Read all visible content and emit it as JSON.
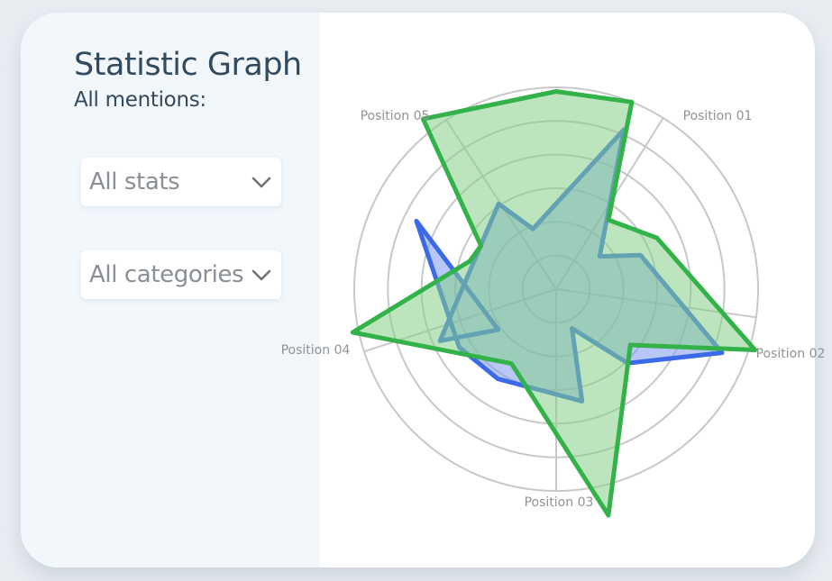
{
  "panel": {
    "title": "Statistic Graph",
    "subtitle": "All mentions:",
    "dropdowns": [
      {
        "label": "All stats",
        "icon": "chevron-down-icon"
      },
      {
        "label": "All categories",
        "icon": "chevron-down-icon"
      }
    ]
  },
  "colors": {
    "background": "#e9edf2",
    "card": "#ffffff",
    "panel": "#f2f7fc",
    "title_text": "#324a5e",
    "grid": "#c8c8c8",
    "series_blue_stroke": "#3a6ae6",
    "series_blue_fill": "#7f99f0",
    "series_green_stroke": "#34b24a",
    "series_green_fill": "#85d088"
  },
  "chart_data": {
    "type": "radar",
    "axes": [
      "Position 01",
      "Position 02",
      "Position 03",
      "Position 04",
      "Position 05"
    ],
    "rings": 6,
    "grid": true,
    "range": [
      0,
      1
    ],
    "series": [
      {
        "color": "#3a6ae6",
        "points": [
          {
            "r": 0.86,
            "angle": 23
          },
          {
            "r": 0.27,
            "angle": 53
          },
          {
            "r": 0.45,
            "angle": 68
          },
          {
            "r": 0.88,
            "angle": 111
          },
          {
            "r": 0.51,
            "angle": 136
          },
          {
            "r": 0.21,
            "angle": 158
          },
          {
            "r": 0.57,
            "angle": 167
          },
          {
            "r": 0.53,
            "angle": 213
          },
          {
            "r": 0.56,
            "angle": 239
          },
          {
            "r": 0.77,
            "angle": 296
          },
          {
            "r": 0.35,
            "angle": 235
          },
          {
            "r": 0.63,
            "angle": 246
          },
          {
            "r": 0.51,
            "angle": 326
          },
          {
            "r": 0.32,
            "angle": 339
          }
        ]
      },
      {
        "color": "#34b24a",
        "points": [
          {
            "r": 0.98,
            "angle": 0
          },
          {
            "r": 1.0,
            "angle": 22
          },
          {
            "r": 0.43,
            "angle": 37
          },
          {
            "r": 0.56,
            "angle": 63
          },
          {
            "r": 1.03,
            "angle": 107
          },
          {
            "r": 0.46,
            "angle": 127
          },
          {
            "r": 1.15,
            "angle": 167
          },
          {
            "r": 0.43,
            "angle": 211
          },
          {
            "r": 1.03,
            "angle": 258
          },
          {
            "r": 0.45,
            "angle": 288
          },
          {
            "r": 0.43,
            "angle": 300
          },
          {
            "r": 1.07,
            "angle": 322
          }
        ]
      }
    ]
  }
}
